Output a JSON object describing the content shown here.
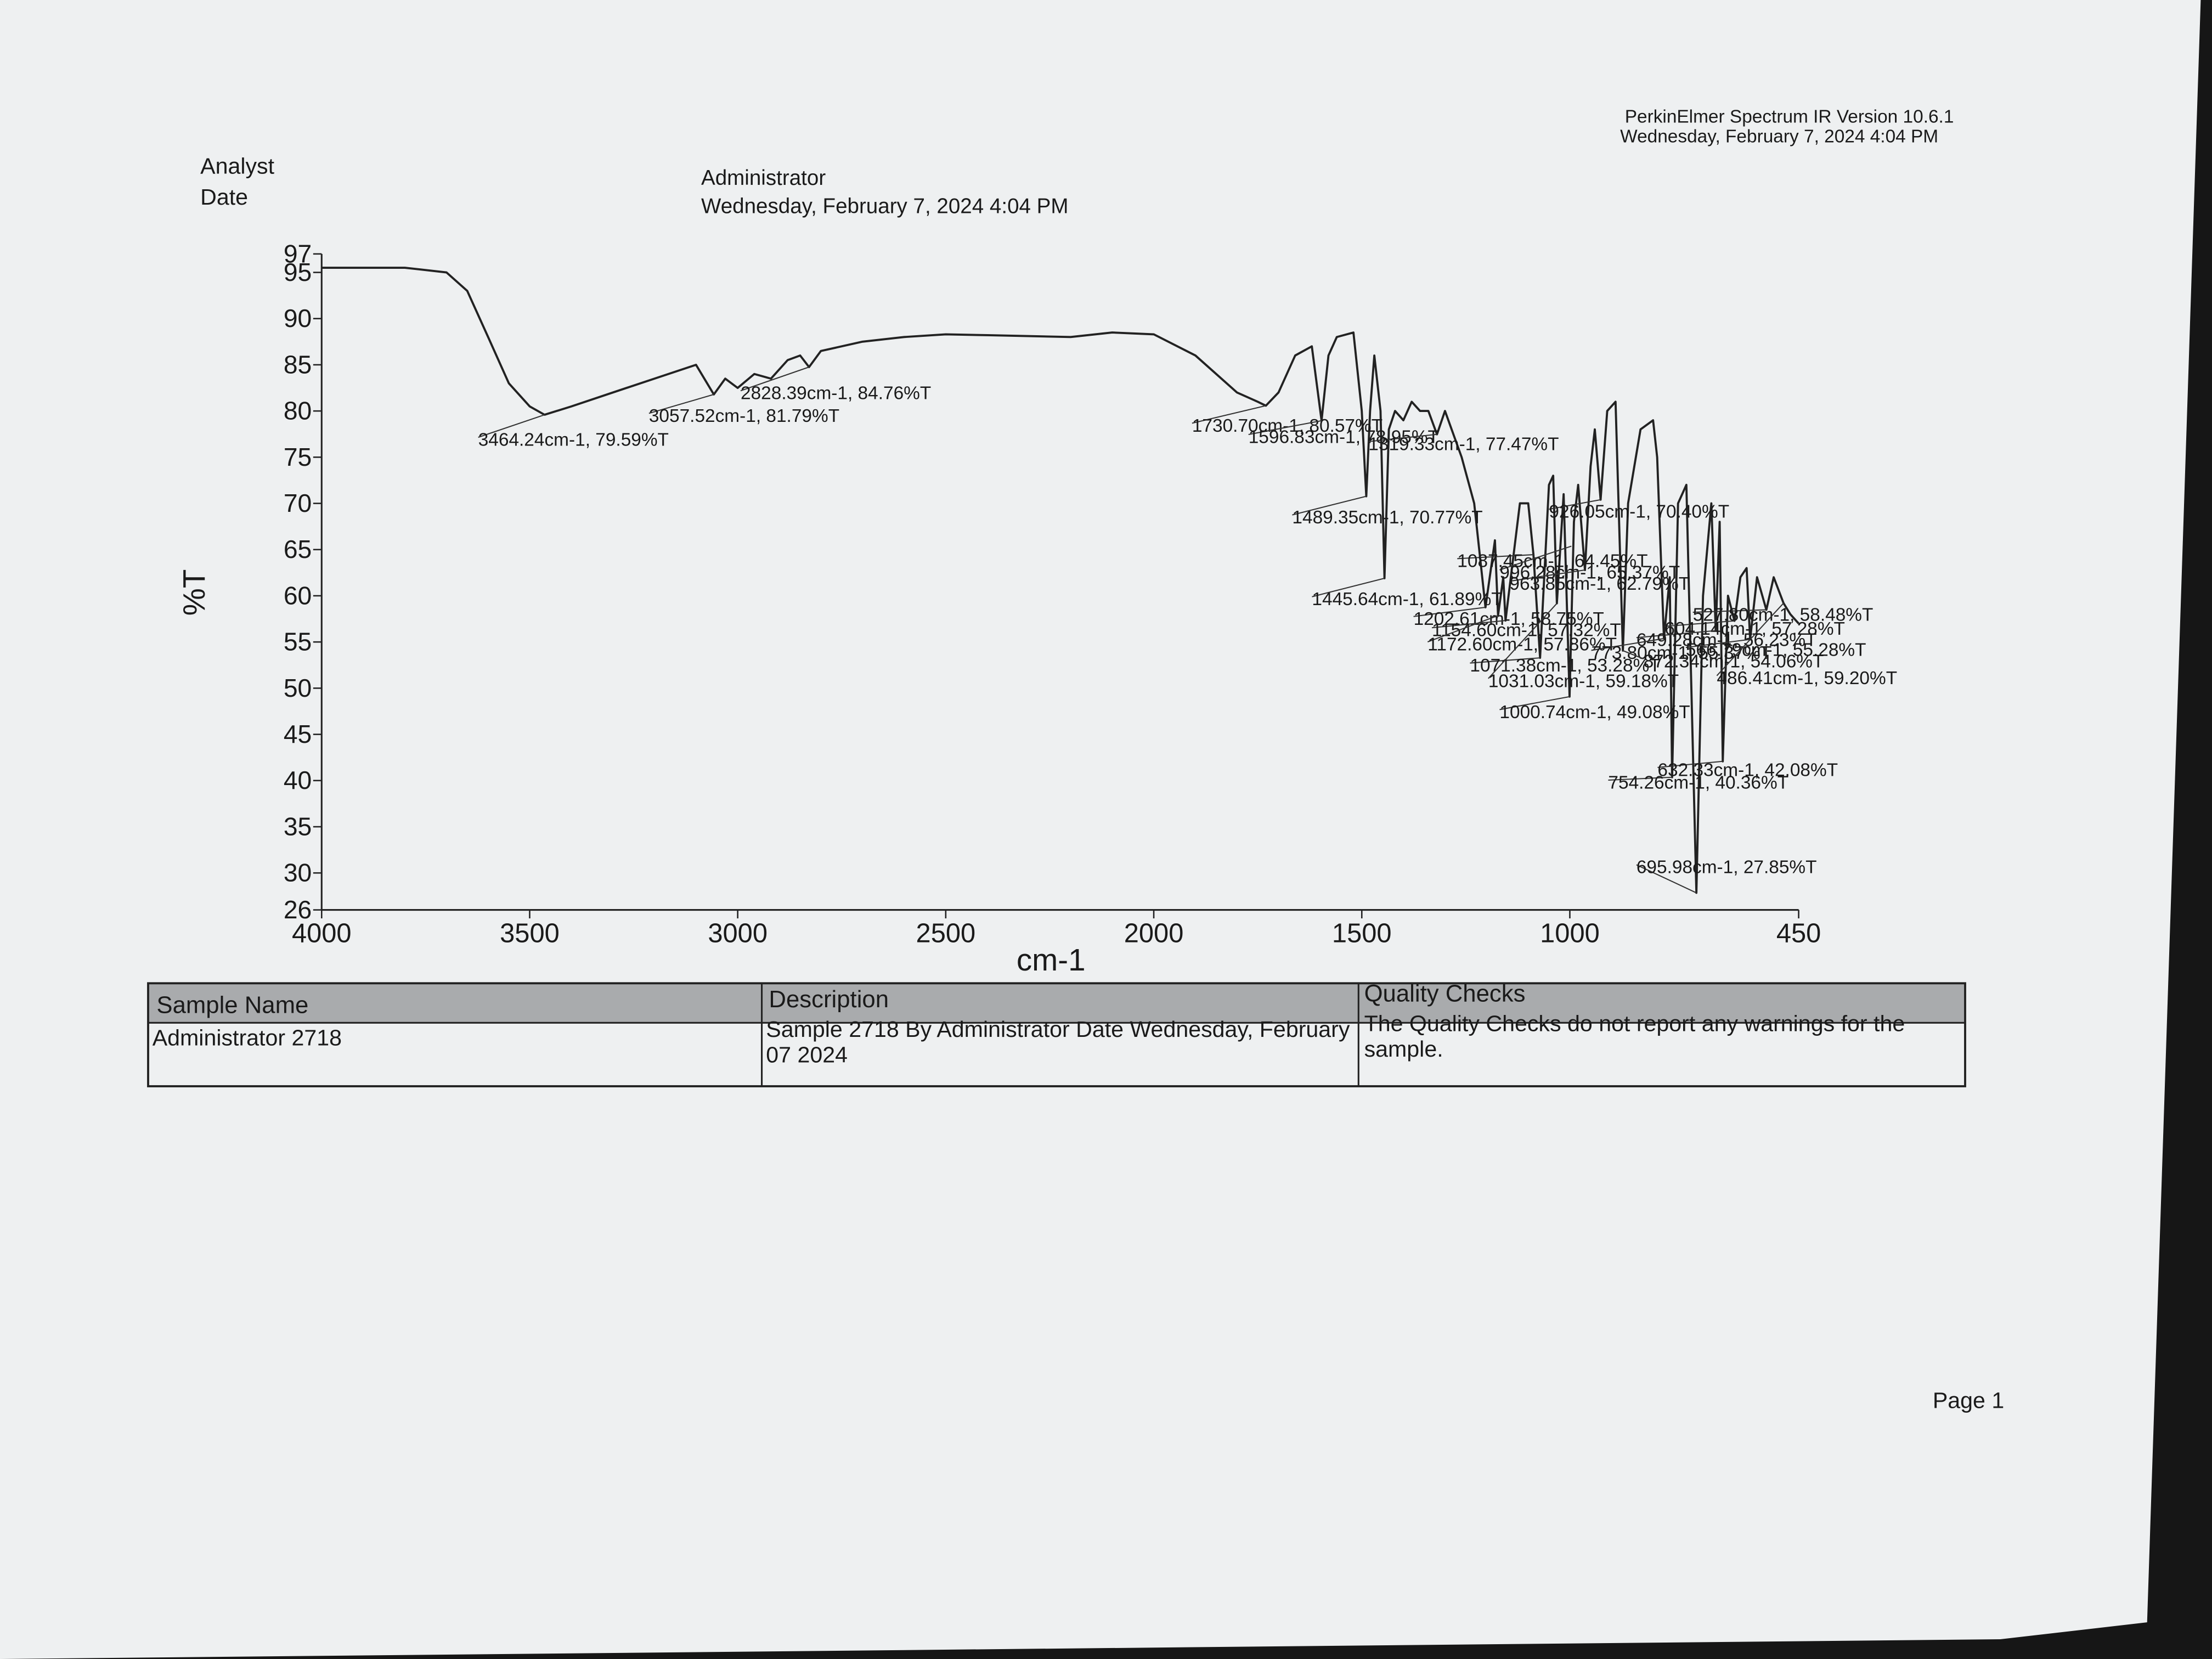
{
  "header": {
    "analyst_label": "Analyst",
    "date_label": "Date",
    "analyst": "Administrator",
    "date": "Wednesday, February 7, 2024 4:04 PM",
    "software": "PerkinElmer Spectrum IR Version 10.6.1",
    "printed": "Wednesday, February 7, 2024 4:04 PM"
  },
  "chart_data": {
    "type": "line",
    "x_label": "cm-1",
    "y_label": "%T",
    "color": "#222222",
    "xlim": [
      4000,
      450
    ],
    "ylim": [
      26,
      97
    ],
    "xticks": [
      4000,
      3500,
      3000,
      2500,
      2000,
      1500,
      1000,
      450
    ],
    "yticks": [
      26,
      30,
      35,
      40,
      45,
      50,
      55,
      60,
      65,
      70,
      75,
      80,
      85,
      90,
      95,
      97
    ],
    "x": [
      4000,
      3800,
      3700,
      3650,
      3600,
      3550,
      3500,
      3464.24,
      3400,
      3300,
      3200,
      3100,
      3057.52,
      3030,
      3000,
      2960,
      2920,
      2880,
      2850,
      2828.39,
      2800,
      2700,
      2600,
      2500,
      2400,
      2200,
      2100,
      2000,
      1900,
      1800,
      1750,
      1730.7,
      1700,
      1660,
      1620,
      1596.83,
      1580,
      1560,
      1520,
      1500,
      1489.35,
      1480,
      1470,
      1455,
      1445.64,
      1435,
      1420,
      1400,
      1380,
      1360,
      1340,
      1319.33,
      1300,
      1260,
      1230,
      1202.61,
      1180,
      1172.6,
      1160,
      1154.6,
      1120,
      1100,
      1087.45,
      1071.38,
      1050,
      1040,
      1031.03,
      1015,
      1000.74,
      990,
      980,
      963.85,
      950,
      940,
      926.05,
      910,
      890,
      872.34,
      860,
      830,
      800,
      790,
      773.8,
      760,
      754.26,
      740,
      720,
      695.98,
      680,
      660,
      649.28,
      640,
      632.33,
      620,
      604.14,
      590,
      575,
      566.79,
      550,
      527.8,
      510,
      486.41,
      470,
      450
    ],
    "values": [
      95.5,
      95.5,
      95,
      93,
      88,
      83,
      80.5,
      79.59,
      80.5,
      82,
      83.5,
      85,
      81.79,
      83.5,
      82.5,
      84,
      83.5,
      85.5,
      86,
      84.76,
      86.5,
      87.5,
      88,
      88.3,
      88.2,
      88,
      88.5,
      88.3,
      86,
      82,
      81,
      80.57,
      82,
      86,
      87,
      78.95,
      86,
      88,
      88.5,
      80,
      70.77,
      80,
      86,
      80,
      61.89,
      78,
      80,
      79,
      81,
      80,
      80,
      77.47,
      80,
      75,
      70,
      58.75,
      66,
      57.86,
      62,
      57.32,
      70,
      70,
      64.45,
      53.28,
      72,
      73,
      59.18,
      71,
      49.08,
      68,
      72,
      62.79,
      74,
      78,
      70.4,
      80,
      81,
      54.06,
      70,
      78,
      79,
      75,
      55.37,
      62,
      40.36,
      70,
      72,
      27.85,
      60,
      70,
      56.23,
      68,
      42.08,
      60,
      57.28,
      62,
      63,
      55.28,
      62,
      58.48,
      62,
      59.2,
      58,
      57
    ],
    "peaks": [
      {
        "label": "3464.24cm-1, 79.59%T",
        "x": 3464.24,
        "y": 79.59
      },
      {
        "label": "3057.52cm-1, 81.79%T",
        "x": 3057.52,
        "y": 81.79
      },
      {
        "label": "2828.39cm-1, 84.76%T",
        "x": 2828.39,
        "y": 84.76
      },
      {
        "label": "1730.70cm-1, 80.57%T",
        "x": 1730.7,
        "y": 80.57
      },
      {
        "label": "1596.83cm-1, 78.95%T",
        "x": 1596.83,
        "y": 78.95
      },
      {
        "label": "1319.33cm-1, 77.47%T",
        "x": 1319.33,
        "y": 77.47
      },
      {
        "label": "1489.35cm-1, 70.77%T",
        "x": 1489.35,
        "y": 70.77
      },
      {
        "label": "926.05cm-1, 70.40%T",
        "x": 926.05,
        "y": 70.4
      },
      {
        "label": "1087.45cm-1, 64.45%T",
        "x": 1087.45,
        "y": 64.45
      },
      {
        "label": "996.28cm-1, 65.37%T",
        "x": 996.28,
        "y": 65.37
      },
      {
        "label": "963.85cm-1, 62.79%T",
        "x": 963.85,
        "y": 62.79
      },
      {
        "label": "1445.64cm-1, 61.89%T",
        "x": 1445.64,
        "y": 61.89
      },
      {
        "label": "1202.61cm-1, 58.75%T",
        "x": 1202.61,
        "y": 58.75
      },
      {
        "label": "1154.60cm-1, 57.32%T",
        "x": 1154.6,
        "y": 57.32
      },
      {
        "label": "1172.60cm-1, 57.86%T",
        "x": 1172.6,
        "y": 57.86
      },
      {
        "label": "527.80cm-1, 58.48%T",
        "x": 527.8,
        "y": 58.48
      },
      {
        "label": "604.14cm-1, 57.28%T",
        "x": 604.14,
        "y": 57.28
      },
      {
        "label": "649.28cm-1, 56.23%T",
        "x": 649.28,
        "y": 56.23
      },
      {
        "label": "773.80cm-1, 55.37%T",
        "x": 773.8,
        "y": 55.37
      },
      {
        "label": "566.79cm-1, 55.28%T",
        "x": 566.79,
        "y": 55.28
      },
      {
        "label": "1071.38cm-1, 53.28%T",
        "x": 1071.38,
        "y": 53.28
      },
      {
        "label": "872.34cm-1, 54.06%T",
        "x": 872.34,
        "y": 54.06
      },
      {
        "label": "1031.03cm-1, 59.18%T",
        "x": 1031.03,
        "y": 59.18
      },
      {
        "label": "486.41cm-1, 59.20%T",
        "x": 486.41,
        "y": 59.2
      },
      {
        "label": "1000.74cm-1, 49.08%T",
        "x": 1000.74,
        "y": 49.08
      },
      {
        "label": "632.33cm-1, 42.08%T",
        "x": 632.33,
        "y": 42.08
      },
      {
        "label": "754.26cm-1, 40.36%T",
        "x": 754.26,
        "y": 40.36
      },
      {
        "label": "695.98cm-1, 27.85%T",
        "x": 695.98,
        "y": 27.85
      }
    ]
  },
  "table": {
    "headers": [
      "Sample Name",
      "Description",
      "Quality Checks"
    ],
    "rows": [
      [
        "Administrator 2718",
        "Sample 2718 By Administrator Date Wednesday, February 07 2024",
        "The Quality Checks do not report any warnings for the sample."
      ]
    ]
  },
  "footer": {
    "page": "Page 1"
  }
}
